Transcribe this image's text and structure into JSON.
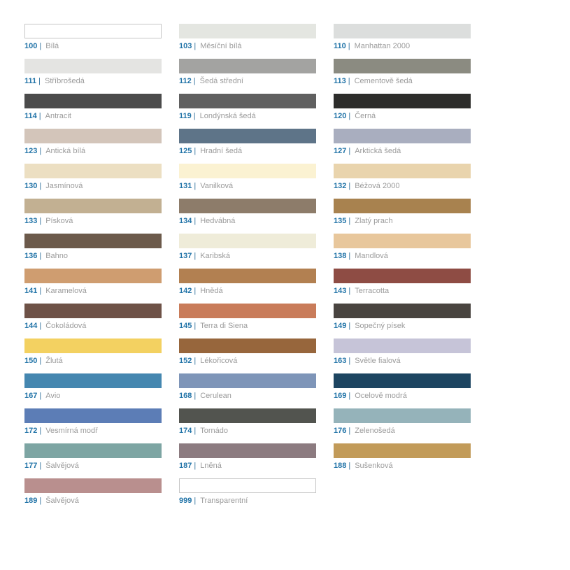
{
  "page": {
    "background": "#ffffff"
  },
  "palette": {
    "code_color": "#2274a8",
    "separator_color": "#35749e",
    "name_color": "#9b9b9b",
    "separator": "|",
    "swatches": [
      {
        "code": "100",
        "name": "Bílá",
        "color": "#ffffff",
        "bordered": true
      },
      {
        "code": "103",
        "name": "Měsíční bílá",
        "color": "#e4e6e1",
        "bordered": false
      },
      {
        "code": "110",
        "name": "Manhattan 2000",
        "color": "#dcdedd",
        "bordered": false
      },
      {
        "code": "111",
        "name": "Stříbrošedá",
        "color": "#e4e4e2",
        "bordered": false
      },
      {
        "code": "112",
        "name": "Šedá střední",
        "color": "#a3a3a1",
        "bordered": false
      },
      {
        "code": "113",
        "name": "Cementově šedá",
        "color": "#8b8b81",
        "bordered": false
      },
      {
        "code": "114",
        "name": "Antracit",
        "color": "#4b4b4b",
        "bordered": false
      },
      {
        "code": "119",
        "name": "Londýnská šedá",
        "color": "#606060",
        "bordered": false
      },
      {
        "code": "120",
        "name": "Černá",
        "color": "#2d2d2b",
        "bordered": false
      },
      {
        "code": "123",
        "name": "Antická bílá",
        "color": "#d3c5ba",
        "bordered": false
      },
      {
        "code": "125",
        "name": "Hradní šedá",
        "color": "#5e7488",
        "bordered": false
      },
      {
        "code": "127",
        "name": "Arktická šedá",
        "color": "#a9aebf",
        "bordered": false
      },
      {
        "code": "130",
        "name": "Jasmínová",
        "color": "#ecdfc2",
        "bordered": false
      },
      {
        "code": "131",
        "name": "Vanilková",
        "color": "#fbf2d2",
        "bordered": false
      },
      {
        "code": "132",
        "name": "Béžová 2000",
        "color": "#e9d4ad",
        "bordered": false
      },
      {
        "code": "133",
        "name": "Písková",
        "color": "#c2b092",
        "bordered": false
      },
      {
        "code": "134",
        "name": "Hedvábná",
        "color": "#8d7c6a",
        "bordered": false
      },
      {
        "code": "135",
        "name": "Zlatý prach",
        "color": "#a8824f",
        "bordered": false
      },
      {
        "code": "136",
        "name": "Bahno",
        "color": "#6c5a4b",
        "bordered": false
      },
      {
        "code": "137",
        "name": "Karibská",
        "color": "#efecd9",
        "bordered": false
      },
      {
        "code": "138",
        "name": "Mandlová",
        "color": "#e8c79c",
        "bordered": false
      },
      {
        "code": "141",
        "name": "Karamelová",
        "color": "#cf9d70",
        "bordered": false
      },
      {
        "code": "142",
        "name": "Hnědá",
        "color": "#b28051",
        "bordered": false
      },
      {
        "code": "143",
        "name": "Terracotta",
        "color": "#8e4c44",
        "bordered": false
      },
      {
        "code": "144",
        "name": "Čokoládová",
        "color": "#6e5247",
        "bordered": false
      },
      {
        "code": "145",
        "name": "Terra di Siena",
        "color": "#c97c5a",
        "bordered": false
      },
      {
        "code": "149",
        "name": "Sopečný písek",
        "color": "#494440",
        "bordered": false
      },
      {
        "code": "150",
        "name": "Žlutá",
        "color": "#f3d161",
        "bordered": false
      },
      {
        "code": "152",
        "name": "Lékořicová",
        "color": "#97663c",
        "bordered": false
      },
      {
        "code": "163",
        "name": "Světle fialová",
        "color": "#c6c4d8",
        "bordered": false
      },
      {
        "code": "167",
        "name": "Avio",
        "color": "#4587b0",
        "bordered": false
      },
      {
        "code": "168",
        "name": "Cerulean",
        "color": "#7e95b8",
        "bordered": false
      },
      {
        "code": "169",
        "name": "Ocelově modrá",
        "color": "#1d4561",
        "bordered": false
      },
      {
        "code": "172",
        "name": "Vesmírná modř",
        "color": "#5c7db6",
        "bordered": false
      },
      {
        "code": "174",
        "name": "Tornádo",
        "color": "#52544f",
        "bordered": false
      },
      {
        "code": "176",
        "name": "Zelenošedá",
        "color": "#95b3ba",
        "bordered": false
      },
      {
        "code": "177",
        "name": "Šalvějová",
        "color": "#7da5a3",
        "bordered": false
      },
      {
        "code": "187",
        "name": "Lněná",
        "color": "#8c7b80",
        "bordered": false
      },
      {
        "code": "188",
        "name": "Sušenková",
        "color": "#c29b59",
        "bordered": false
      },
      {
        "code": "189",
        "name": "Šalvějová",
        "color": "#b98f8e",
        "bordered": false
      },
      {
        "code": "999",
        "name": "Transparentní",
        "color": "#ffffff",
        "bordered": true
      }
    ]
  }
}
